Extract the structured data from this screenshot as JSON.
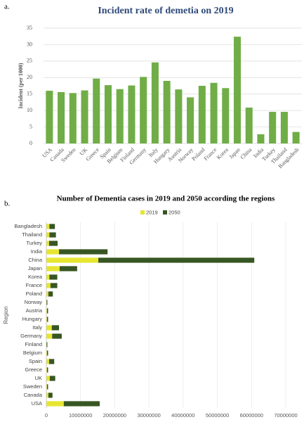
{
  "chart_data": [
    {
      "type": "bar",
      "label": "a.",
      "title": "Incident rate of demetia on 2019",
      "y_label": "Incident (per 1000)",
      "categories": [
        "USA",
        "Canada",
        "Sweden",
        "UK",
        "Greece",
        "Spain",
        "Belgium",
        "Finland",
        "Germany",
        "Italy",
        "Hungary",
        "Austria",
        "Norway",
        "Poland",
        "France",
        "Korea",
        "Japan",
        "China",
        "India",
        "Turkey",
        "Thailand",
        "Bangladesh"
      ],
      "values": [
        16,
        15.6,
        15.3,
        16.1,
        19.7,
        17.7,
        16.5,
        17.6,
        20.2,
        24.6,
        19,
        16.4,
        14,
        17.5,
        18.4,
        16.8,
        32.4,
        10.9,
        2.8,
        9.6,
        9.6,
        3.5
      ],
      "color": "#70ad47",
      "ylim": [
        0,
        35
      ],
      "yticks": [
        0,
        5,
        10,
        15,
        20,
        25,
        30,
        35
      ],
      "grid": true
    },
    {
      "type": "stacked_barh",
      "label": "b.",
      "title": "Number of Dementia cases in 2019 and 2050 according the regions",
      "y_label": "Region",
      "categories": [
        "Bangladesh",
        "Thailand",
        "Turkey",
        "India",
        "China",
        "Japan",
        "Korea",
        "France",
        "Poland",
        "Norway",
        "Austria",
        "Hungary",
        "Italy",
        "Germany",
        "Finland",
        "Belgium",
        "Spain",
        "Greece",
        "UK",
        "Sweden",
        "Canada",
        "USA"
      ],
      "series": [
        {
          "name": "2019",
          "color": "#e6e632",
          "values": [
            900000,
            900000,
            800000,
            3700000,
            15200000,
            3900000,
            900000,
            1200000,
            600000,
            100000,
            200000,
            200000,
            1600000,
            1700000,
            100000,
            200000,
            800000,
            200000,
            1000000,
            200000,
            600000,
            5100000
          ]
        },
        {
          "name": "2050",
          "color": "#375623",
          "values": [
            1600000,
            1900000,
            2500000,
            14200000,
            45600000,
            5100000,
            2300000,
            2000000,
            1300000,
            200000,
            300000,
            300000,
            2100000,
            2800000,
            200000,
            300000,
            1500000,
            300000,
            1600000,
            300000,
            1200000,
            10500000
          ]
        }
      ],
      "xlim": [
        0,
        70000000
      ],
      "xticks": [
        0,
        10000000,
        20000000,
        30000000,
        40000000,
        50000000,
        60000000,
        70000000
      ],
      "grid": true,
      "legend": "top"
    }
  ]
}
